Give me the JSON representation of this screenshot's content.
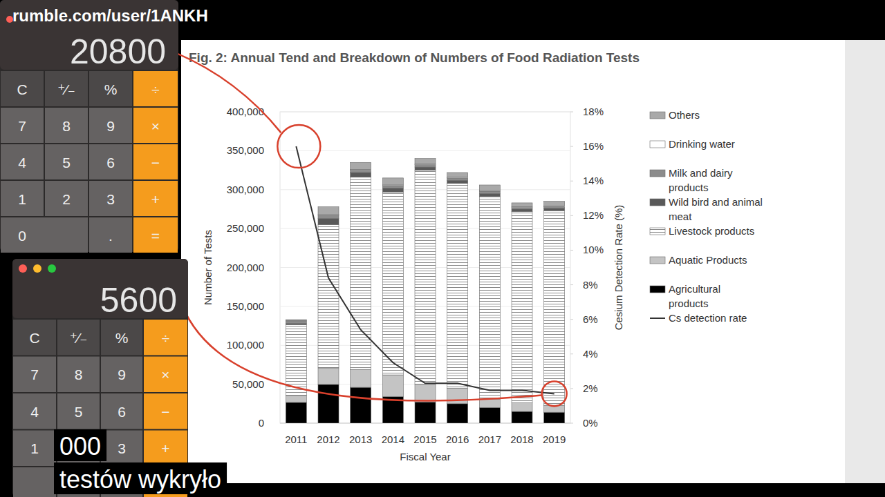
{
  "watermark": "rumble.com/user/1ANKH",
  "calculators": [
    {
      "display": "20800",
      "keys": [
        [
          "C",
          "⁺⁄₋",
          "%",
          "÷"
        ],
        [
          "7",
          "8",
          "9",
          "×"
        ],
        [
          "4",
          "5",
          "6",
          "−"
        ],
        [
          "1",
          "2",
          "3",
          "+"
        ],
        [
          "0",
          ".",
          "="
        ]
      ]
    },
    {
      "display": "5600",
      "keys": [
        [
          "C",
          "⁺⁄₋",
          "%",
          "÷"
        ],
        [
          "7",
          "8",
          "9",
          "×"
        ],
        [
          "4",
          "5",
          "6",
          "−"
        ],
        [
          "1",
          null,
          "3",
          "+"
        ]
      ]
    }
  ],
  "subtitles": [
    "000",
    "testów wykryło"
  ],
  "chart_data": {
    "type": "bar",
    "title": "Fig. 2: Annual Tend and Breakdown of Numbers of Food Radiation Tests",
    "xlabel": "Fiscal Year",
    "ylabel": "Number of Tests",
    "y2label": "Cesium Detection Rate (%)",
    "categories": [
      "2011",
      "2012",
      "2013",
      "2014",
      "2015",
      "2016",
      "2017",
      "2018",
      "2019"
    ],
    "stacked": true,
    "grid": true,
    "legend": "right",
    "ylim": [
      0,
      400000
    ],
    "yticks": [
      0,
      {
        "value": 50000,
        "label": "50,000"
      },
      {
        "value": 100000,
        "label": "100,000"
      },
      {
        "value": 150000,
        "label": "150,000"
      },
      {
        "value": 200000,
        "label": "200,000"
      },
      {
        "value": 250000,
        "label": "250,000"
      },
      {
        "value": 300000,
        "label": "300,000"
      },
      {
        "value": 350000,
        "label": "350,000"
      },
      {
        "value": 400000,
        "label": "400,000"
      }
    ],
    "y2lim": [
      0,
      18
    ],
    "y2ticks": [
      {
        "value": 0,
        "label": "0%"
      },
      {
        "value": 2,
        "label": "2%"
      },
      {
        "value": 4,
        "label": "4%"
      },
      {
        "value": 6,
        "label": "6%"
      },
      {
        "value": 8,
        "label": "8%"
      },
      {
        "value": 10,
        "label": "10%"
      },
      {
        "value": 12,
        "label": "12%"
      },
      {
        "value": 14,
        "label": "14%"
      },
      {
        "value": 16,
        "label": "16%"
      },
      {
        "value": 18,
        "label": "18%"
      }
    ],
    "series": [
      {
        "name": "Agricultural products",
        "type": "bar",
        "color": "#000000",
        "values": [
          26600,
          49700,
          46000,
          34000,
          27000,
          25000,
          20000,
          15000,
          14000
        ]
      },
      {
        "name": "Aquatic Products",
        "type": "bar",
        "color": "#c4c4c4",
        "values": [
          9000,
          21300,
          23000,
          28000,
          23000,
          20000,
          11000,
          11000,
          9000
        ]
      },
      {
        "name": "Livestock products",
        "type": "bar",
        "color": "#ffffff",
        "values": [
          91000,
          184000,
          247000,
          235000,
          275000,
          263000,
          260000,
          246000,
          250000
        ]
      },
      {
        "name": "Wild bird and animal meat",
        "type": "bar",
        "color": "#595959",
        "values": [
          1500,
          8000,
          6000,
          5000,
          4000,
          4000,
          4000,
          3000,
          3000
        ]
      },
      {
        "name": "Milk and dairy products",
        "type": "bar",
        "color": "#8c8c8c",
        "values": [
          3000,
          4000,
          3000,
          3000,
          3000,
          3000,
          3000,
          2000,
          2000
        ]
      },
      {
        "name": "Drinking water",
        "type": "bar",
        "color": "#ffffff",
        "values": [
          500,
          1000,
          1000,
          1000,
          1000,
          1000,
          1000,
          1000,
          1000
        ]
      },
      {
        "name": "Others",
        "type": "bar",
        "color": "#a9a9a9",
        "values": [
          1400,
          10000,
          9000,
          9000,
          7000,
          6000,
          7000,
          5000,
          6000
        ]
      },
      {
        "name": "Cs detection rate",
        "type": "line",
        "axis": "y2",
        "color": "#333333",
        "values": [
          16.0,
          8.4,
          5.4,
          3.5,
          2.3,
          2.3,
          1.9,
          1.9,
          1.7
        ]
      }
    ]
  }
}
